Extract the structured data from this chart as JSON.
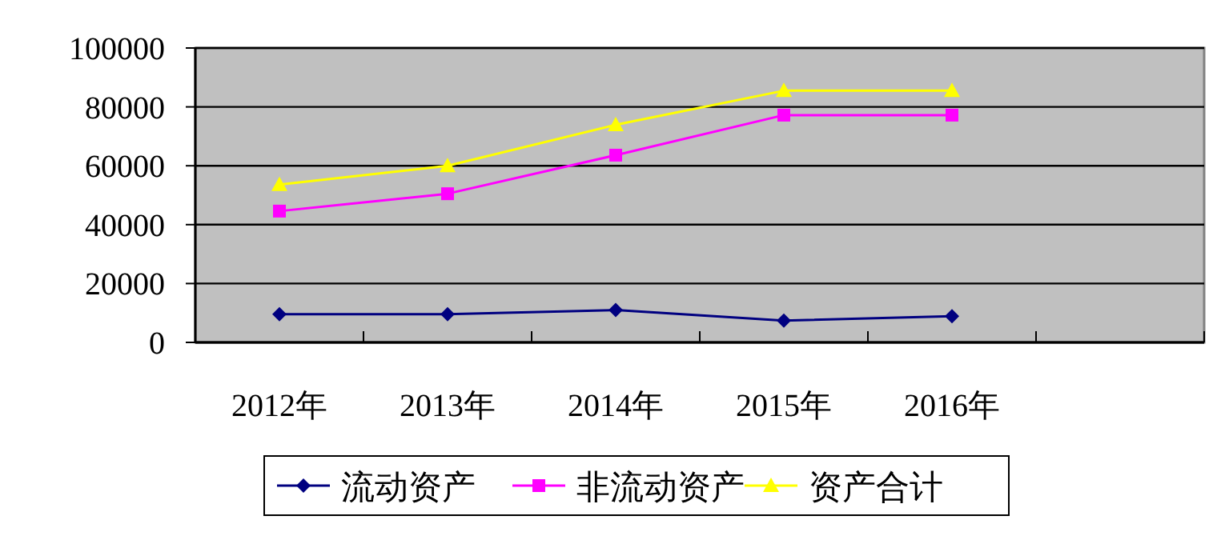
{
  "chart_data": {
    "type": "line",
    "categories": [
      "2012年",
      "2013年",
      "2014年",
      "2015年",
      "2016年",
      null
    ],
    "series": [
      {
        "name": "流动资产",
        "color": "#000080",
        "marker": "diamond",
        "values": [
          9600,
          9600,
          11000,
          7400,
          8900,
          null
        ]
      },
      {
        "name": "非流动资产",
        "color": "#ff00ff",
        "marker": "square",
        "values": [
          44600,
          50500,
          63600,
          77200,
          77200,
          null
        ]
      },
      {
        "name": "资产合计",
        "color": "#ffff00",
        "marker": "triangle",
        "values": [
          53600,
          60000,
          73900,
          85500,
          85500,
          null
        ]
      }
    ],
    "ylim": [
      0,
      100000
    ],
    "yticks": [
      0,
      20000,
      40000,
      60000,
      80000,
      100000
    ],
    "grid": "y",
    "legend": "bottom"
  }
}
